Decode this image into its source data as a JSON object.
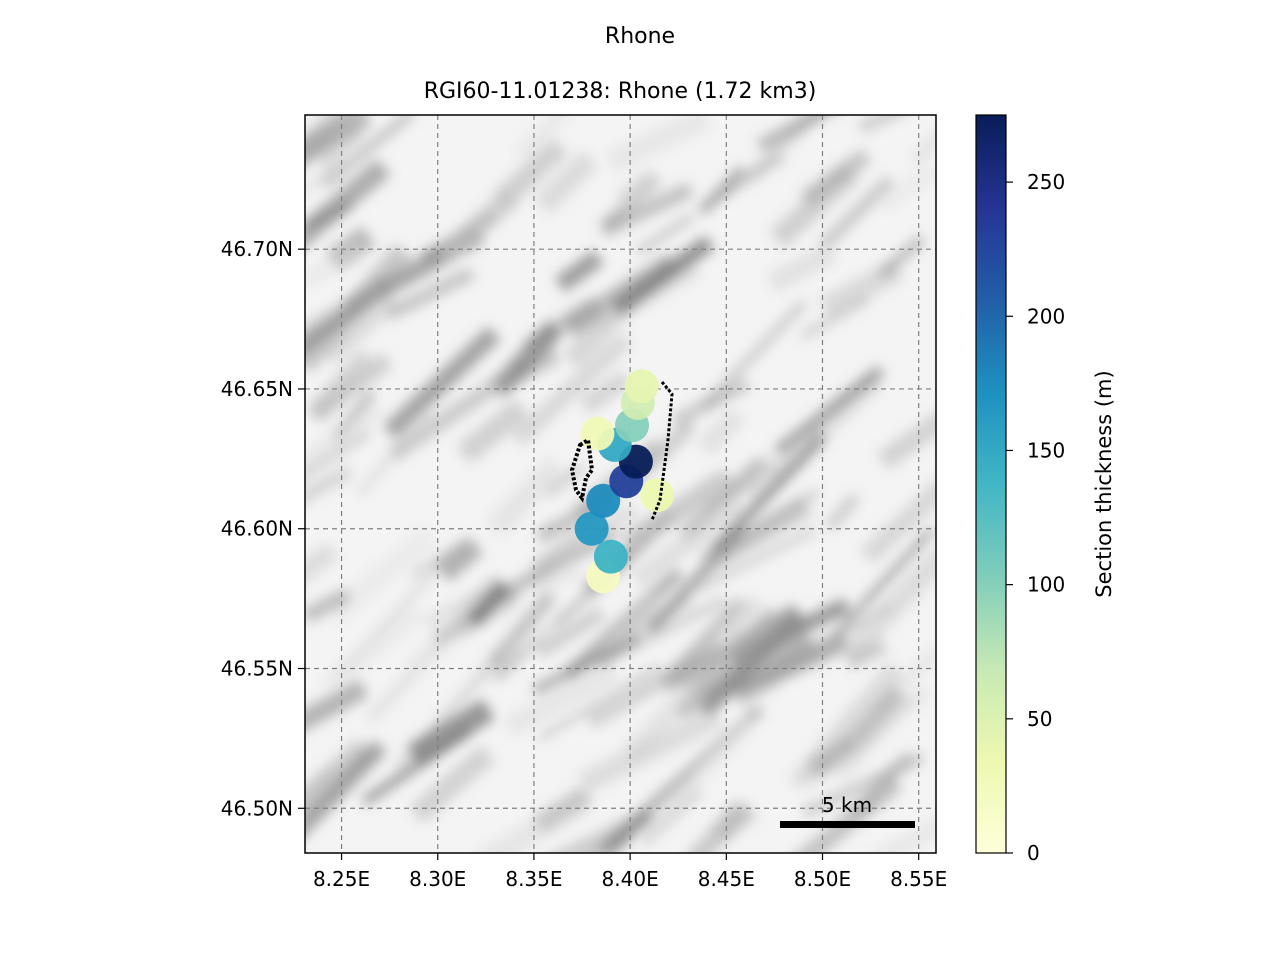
{
  "figure": {
    "suptitle": "Rhone",
    "title": "RGI60-11.01238: Rhone (1.72 km3)"
  },
  "chart_data": {
    "type": "heatmap",
    "title": "RGI60-11.01238: Rhone (1.72 km3)",
    "xlabel": "",
    "ylabel": "",
    "x_ticks": [
      "8.25E",
      "8.30E",
      "8.35E",
      "8.40E",
      "8.45E",
      "8.50E",
      "8.55E"
    ],
    "x_tick_values": [
      8.25,
      8.3,
      8.35,
      8.4,
      8.45,
      8.5,
      8.55
    ],
    "y_ticks": [
      "46.50N",
      "46.55N",
      "46.60N",
      "46.65N",
      "46.70N"
    ],
    "y_tick_values": [
      46.5,
      46.55,
      46.6,
      46.65,
      46.7
    ],
    "xlim": [
      8.231,
      8.559
    ],
    "ylim": [
      46.484,
      46.748
    ],
    "grid": true,
    "colorbar": {
      "label": "Section thickness (m)",
      "ticks": [
        0,
        50,
        100,
        150,
        200,
        250
      ],
      "range": [
        0,
        275
      ],
      "colormap": "YlGnBu",
      "colors": [
        "#ffffd9",
        "#edf8b1",
        "#c7e9b4",
        "#7fcdbb",
        "#41b6c4",
        "#1d91c0",
        "#225ea8",
        "#253494",
        "#081d58"
      ]
    },
    "scalebar_label": "5 km",
    "glacier_sections": [
      {
        "lon": 8.386,
        "lat": 46.583,
        "thickness": 20
      },
      {
        "lon": 8.39,
        "lat": 46.59,
        "thickness": 140
      },
      {
        "lon": 8.38,
        "lat": 46.6,
        "thickness": 165
      },
      {
        "lon": 8.386,
        "lat": 46.61,
        "thickness": 175
      },
      {
        "lon": 8.398,
        "lat": 46.617,
        "thickness": 230
      },
      {
        "lon": 8.403,
        "lat": 46.624,
        "thickness": 275
      },
      {
        "lon": 8.392,
        "lat": 46.63,
        "thickness": 150
      },
      {
        "lon": 8.401,
        "lat": 46.637,
        "thickness": 100
      },
      {
        "lon": 8.404,
        "lat": 46.645,
        "thickness": 60
      },
      {
        "lon": 8.406,
        "lat": 46.651,
        "thickness": 40
      },
      {
        "lon": 8.383,
        "lat": 46.634,
        "thickness": 30
      },
      {
        "lon": 8.414,
        "lat": 46.612,
        "thickness": 35
      }
    ]
  },
  "colors": {
    "gridline": "#808080",
    "outline": "#000000",
    "terrain_light": "#f7f7f7",
    "terrain_dark": "#707070"
  }
}
